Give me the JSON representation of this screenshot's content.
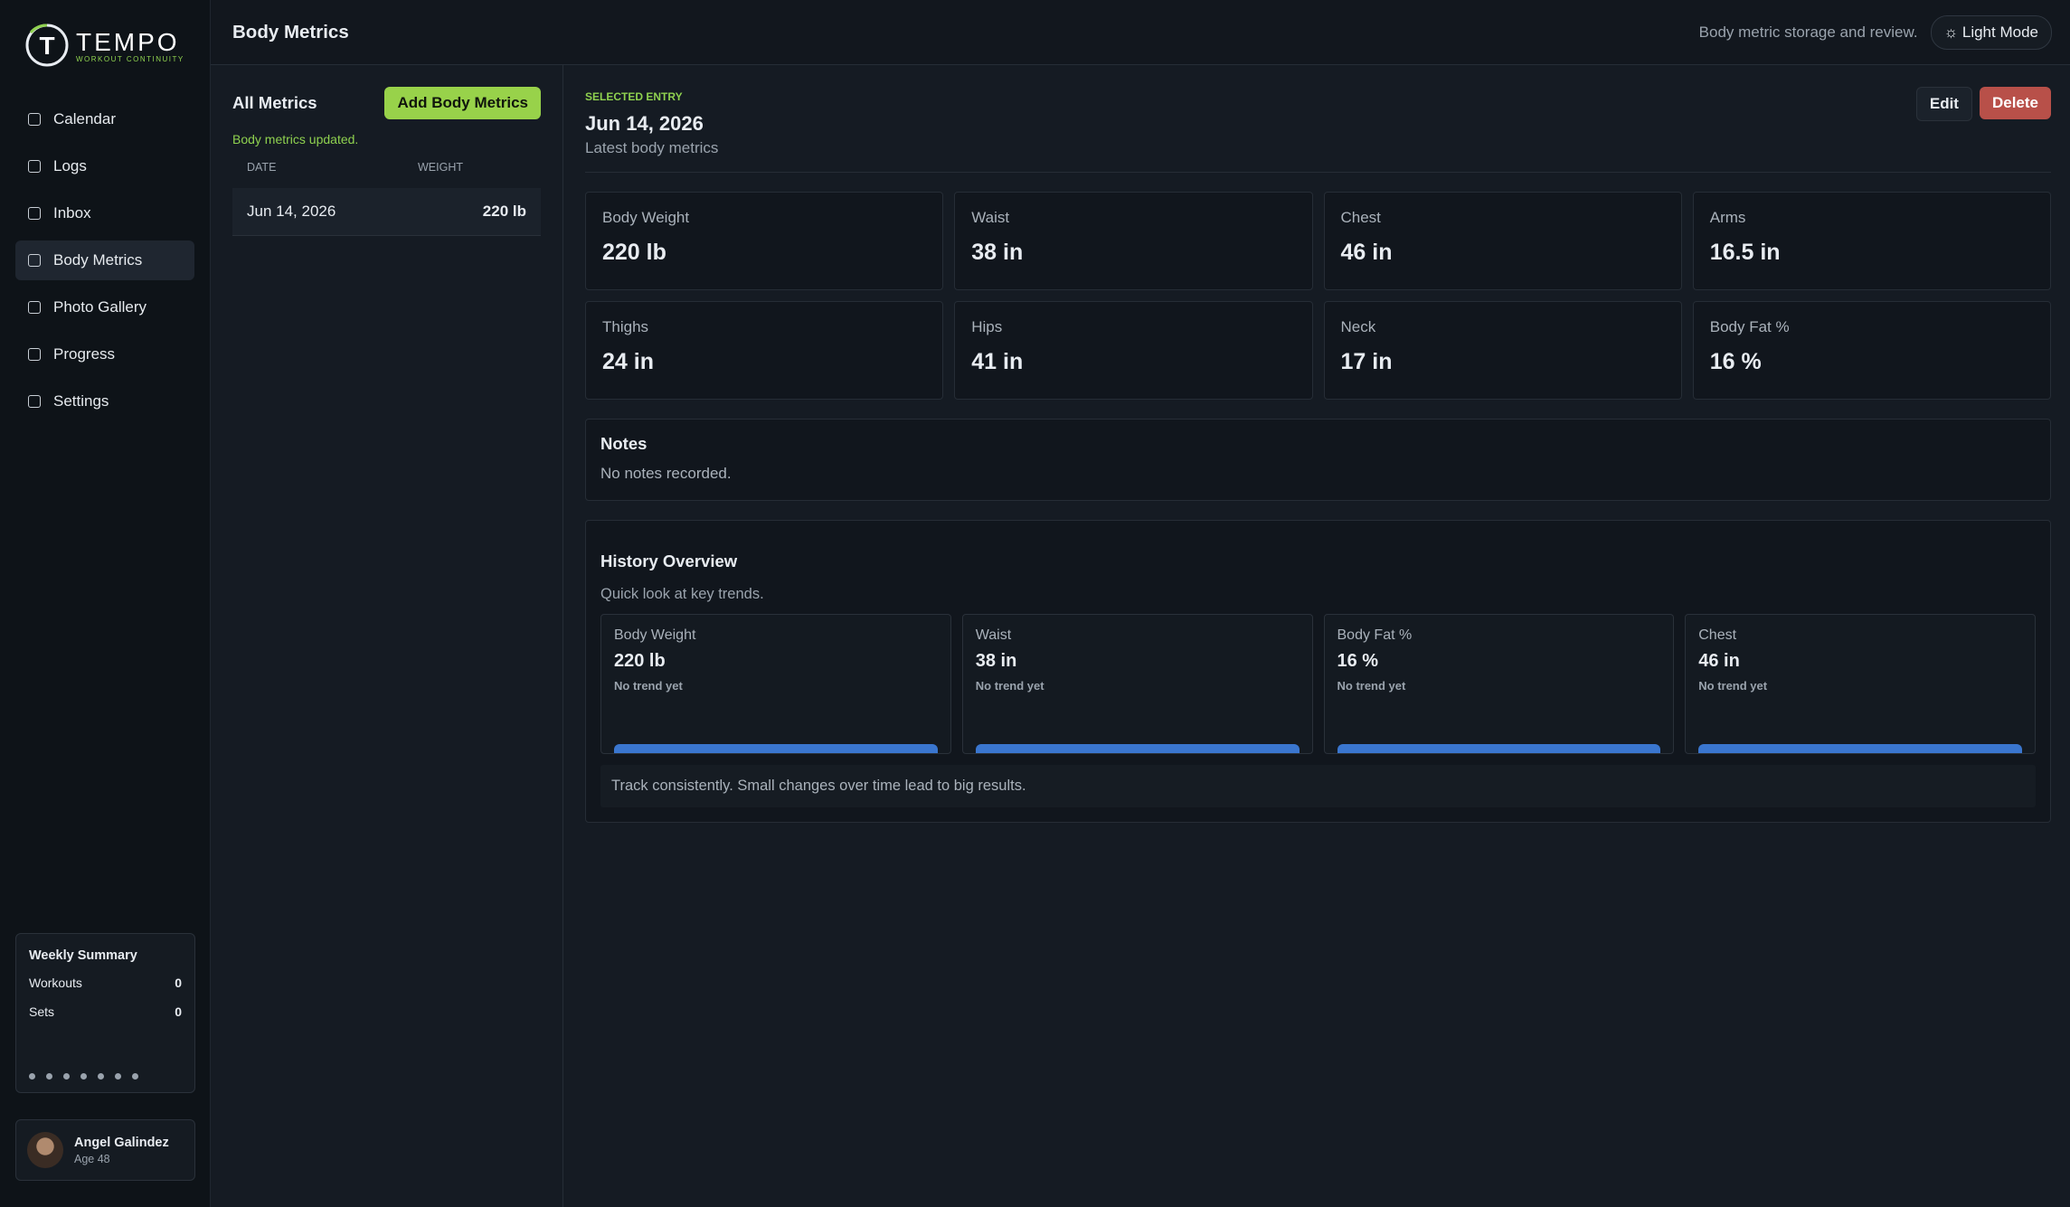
{
  "sidebar": {
    "brand": "TEMPO",
    "tagline": "WORKOUT CONTINUITY",
    "nav": [
      "Calendar",
      "Logs",
      "Inbox",
      "Body Metrics",
      "Photo Gallery",
      "Progress",
      "Settings"
    ],
    "active_nav": 3,
    "weekly_summary": {
      "title": "Weekly Summary",
      "rows": [
        {
          "label": "Workouts",
          "value": 0
        },
        {
          "label": "Sets",
          "value": 0
        }
      ]
    },
    "user": {
      "name": "Angel Galindez",
      "age": "Age 48"
    }
  },
  "header": {
    "title": "Body Metrics",
    "subtitle": "Body metric storage and review.",
    "theme_button": "Light Mode"
  },
  "list": {
    "title": "All Metrics",
    "add_button": "Add Body Metrics",
    "status": "Body metrics updated.",
    "columns": [
      "DATE",
      "WEIGHT"
    ],
    "rows": [
      [
        "Jun 14, 2026",
        "220 lb"
      ]
    ]
  },
  "detail": {
    "eyebrow": "SELECTED ENTRY",
    "date": "Jun 14, 2026",
    "caption": "Latest body metrics",
    "actions": [
      "Edit",
      "Delete"
    ],
    "metrics": [
      {
        "label": "Body Weight",
        "value": "220 lb"
      },
      {
        "label": "Waist",
        "value": "38 in"
      },
      {
        "label": "Chest",
        "value": "46 in"
      },
      {
        "label": "Arms",
        "value": "16.5 in"
      },
      {
        "label": "Thighs",
        "value": "24 in"
      },
      {
        "label": "Hips",
        "value": "41 in"
      },
      {
        "label": "Neck",
        "value": "17 in"
      },
      {
        "label": "Body Fat %",
        "value": "16 %"
      }
    ],
    "notes": {
      "title": "Notes",
      "text": "No notes recorded."
    },
    "history": {
      "title": "History Overview",
      "subtitle": "Quick look at key trends.",
      "cards": [
        {
          "label": "Body Weight",
          "value": "220 lb",
          "trend": "No trend yet"
        },
        {
          "label": "Waist",
          "value": "38 in",
          "trend": "No trend yet"
        },
        {
          "label": "Body Fat %",
          "value": "16 %",
          "trend": "No trend yet"
        },
        {
          "label": "Chest",
          "value": "46 in",
          "trend": "No trend yet"
        }
      ],
      "footer": "Track consistently. Small changes over time lead to big results."
    }
  }
}
